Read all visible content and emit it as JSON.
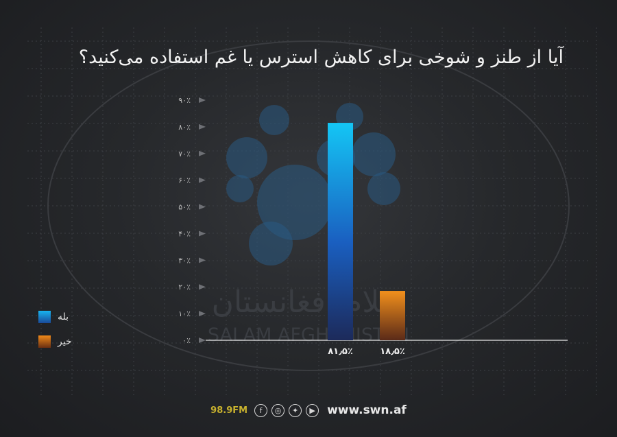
{
  "title": "آیا از طنز و شوخی برای کاهش استرس یا غم استفاده می‌کنید؟",
  "watermark": {
    "persian": "سلام افغانستان",
    "latin": "SALAM AFGHANISTAN"
  },
  "chart_data": {
    "type": "bar",
    "categories": [
      "بله",
      "خیر"
    ],
    "values": [
      81.5,
      18.5
    ],
    "value_labels": [
      "۸۱٫۵٪",
      "۱۸٫۵٪"
    ],
    "ylim": [
      0,
      90
    ],
    "yticks": [
      "۰٪",
      "۱۰٪",
      "۲۰٪",
      "۳۰٪",
      "۴۰٪",
      "۵۰٪",
      "۶۰٪",
      "۷۰٪",
      "۸۰٪",
      "۹۰٪"
    ],
    "colors": [
      "#1a8fe0",
      "#e0781a"
    ],
    "legend": [
      {
        "label": "بله",
        "color": "#1a8fe0"
      },
      {
        "label": "خیر",
        "color": "#e0781a"
      }
    ],
    "legend_position": "left",
    "grid": true
  },
  "footer": {
    "frequency": "98.9FM",
    "icons": [
      "facebook-icon",
      "instagram-icon",
      "twitter-icon",
      "youtube-icon"
    ],
    "website": "www.swn.af"
  }
}
